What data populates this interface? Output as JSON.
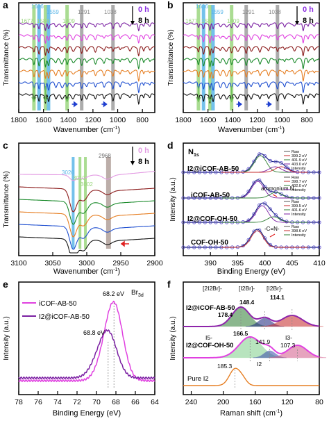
{
  "chart_data": [
    {
      "panel": "a",
      "type": "line",
      "xlabel": "Wavenumber (cm",
      "xlabel_sup": "-1",
      "xlabel_tail": ")",
      "ylabel": "Transmittance (%)",
      "xlim": [
        1800,
        700
      ],
      "x_reversed": true,
      "xticks": [
        "1800",
        "1600",
        "1400",
        "1200",
        "1000",
        "800"
      ],
      "xtick_values": [
        1800,
        1600,
        1400,
        1200,
        1000,
        800
      ],
      "timeline_start": "0 h",
      "timeline_end": "8 h",
      "band_markers": [
        {
          "label": "1677",
          "x": 1677,
          "color": "#9bd67f"
        },
        {
          "label": "1636",
          "x": 1636,
          "color": "#5bb6e8"
        },
        {
          "label": "1584",
          "x": 1584,
          "color": "#9bd67f"
        },
        {
          "label": "1559",
          "x": 1559,
          "color": "#5bb6e8"
        },
        {
          "label": "1409",
          "x": 1409,
          "color": "#9bd67f"
        },
        {
          "label": "1291",
          "x": 1291,
          "color": "#9e9e9e"
        },
        {
          "label": "1038",
          "x": 1038,
          "color": "#9e9e9e"
        }
      ],
      "series_colors": [
        "#7a1fa2",
        "#e040e0",
        "#8b1a1a",
        "#1a8a2a",
        "#e67e22",
        "#1f4fd0",
        "#111111"
      ]
    },
    {
      "panel": "b",
      "type": "line",
      "xlabel": "Wavenumber (cm",
      "xlabel_sup": "-1",
      "xlabel_tail": ")",
      "ylabel": "Transmittance (%)",
      "xlim": [
        1800,
        700
      ],
      "x_reversed": true,
      "xticks": [
        "1800",
        "1600",
        "1400",
        "1200",
        "1000",
        "800"
      ],
      "xtick_values": [
        1800,
        1600,
        1400,
        1200,
        1000,
        800
      ],
      "timeline_start": "0 h",
      "timeline_end": "8 h",
      "band_markers": [
        {
          "label": "1677",
          "x": 1677,
          "color": "#9bd67f"
        },
        {
          "label": "1636",
          "x": 1636,
          "color": "#5bb6e8"
        },
        {
          "label": "1584",
          "x": 1584,
          "color": "#9bd67f"
        },
        {
          "label": "1559",
          "x": 1559,
          "color": "#5bb6e8"
        },
        {
          "label": "1409",
          "x": 1409,
          "color": "#9bd67f"
        },
        {
          "label": "1291",
          "x": 1291,
          "color": "#9e9e9e"
        },
        {
          "label": "1038",
          "x": 1038,
          "color": "#9e9e9e"
        }
      ],
      "series_colors": [
        "#7a1fa2",
        "#e040e0",
        "#8b1a1a",
        "#1a8a2a",
        "#e67e22",
        "#1f4fd0",
        "#111111"
      ]
    },
    {
      "panel": "c",
      "type": "line",
      "xlabel": "Wavenumber (cm",
      "xlabel_sup": "-1",
      "xlabel_tail": ")",
      "ylabel": "Transmittance (%)",
      "xlim": [
        3100,
        2900
      ],
      "x_reversed": true,
      "xticks": [
        "3100",
        "3050",
        "3000",
        "2950",
        "2900"
      ],
      "xtick_values": [
        3100,
        3050,
        3000,
        2950,
        2900
      ],
      "timeline_start": "0 h",
      "timeline_end": "8 h",
      "band_markers": [
        {
          "label": "3020",
          "x": 3020,
          "color": "#5bb6e8"
        },
        {
          "label": "3010",
          "x": 3010,
          "color": "#9bd67f"
        },
        {
          "label": "3002",
          "x": 3002,
          "color": "#9bd67f"
        },
        {
          "label": "2968",
          "x": 2968,
          "color": "#b0a09a"
        }
      ]
    },
    {
      "panel": "d",
      "type": "line",
      "title": "N",
      "title_sub": "1s",
      "xlabel": "Binding Energy (eV)",
      "ylabel": "Intensity (a.u.)",
      "xlim": [
        385,
        410
      ],
      "xticks": [
        "390",
        "395",
        "400",
        "405",
        "410"
      ],
      "xtick_values": [
        390,
        395,
        400,
        405,
        410
      ],
      "samples": [
        {
          "name": "I2@iCOF-AB-50",
          "legend": [
            "Raw",
            "399.2 eV",
            "401.9 eV",
            "403.0 eV",
            "Intensity"
          ],
          "peaks": [
            399.2,
            401.9,
            403.0
          ]
        },
        {
          "name": "iCOF-AB-50",
          "annotation": "ammonium N",
          "legend": [
            "Raw",
            "398.7 eV",
            "402.0 eV",
            "Intensity"
          ],
          "peaks": [
            398.7,
            402.0
          ]
        },
        {
          "name": "I2@COF-OH-50",
          "legend": [
            "Raw",
            "399.5 eV",
            "401.6 eV",
            "Intensity"
          ],
          "peaks": [
            399.5,
            401.6
          ]
        },
        {
          "name": "COF-OH-50",
          "annotation": "-C=N-",
          "legend": [
            "Raw",
            "398.6 eV",
            "Intensity"
          ],
          "peaks": [
            398.6
          ]
        }
      ]
    },
    {
      "panel": "e",
      "type": "line",
      "title": "Br",
      "title_sub": "3d",
      "xlabel": "Binding Energy (eV)",
      "ylabel": "Intensity (a.u.)",
      "xlim": [
        78,
        64
      ],
      "x_reversed": true,
      "xticks": [
        "78",
        "76",
        "74",
        "72",
        "70",
        "68",
        "66",
        "64"
      ],
      "xtick_values": [
        78,
        76,
        74,
        72,
        70,
        68,
        66,
        64
      ],
      "series": [
        {
          "name": "iCOF-AB-50",
          "color": "#e040e0",
          "peak": 68.2,
          "peak_label": "68.2 eV"
        },
        {
          "name": "I2@iCOF-AB-50",
          "color": "#7a1fa2",
          "peak": 68.8,
          "peak_label": "68.8 eV"
        }
      ]
    },
    {
      "panel": "f",
      "type": "line",
      "xlabel": "Raman shift (cm",
      "xlabel_sup": "-1",
      "xlabel_tail": ")",
      "ylabel": "Intensity (a.u.)",
      "xlim": [
        250,
        80
      ],
      "x_reversed": true,
      "xticks": [
        "240",
        "200",
        "160",
        "120",
        "80"
      ],
      "xtick_values": [
        240,
        200,
        160,
        120,
        80
      ],
      "species_labels": [
        "[2I2Br]-",
        "[I2Br]-",
        "[I2Br]-",
        "I5-",
        "I3-",
        "I2"
      ],
      "samples": [
        {
          "name": "I2@iCOF-AB-50",
          "peaks": [
            178.4,
            148.4,
            114.1
          ]
        },
        {
          "name": "I2@COF-OH-50",
          "peaks": [
            166.5,
            141.9,
            107.3
          ]
        },
        {
          "name": "Pure I2",
          "peaks": [
            185.3
          ]
        }
      ],
      "peak_labels": [
        "178.4",
        "148.4",
        "114.1",
        "166.5",
        "141.9",
        "107.3",
        "185.3"
      ]
    }
  ],
  "panel_labels": [
    "a",
    "b",
    "c",
    "d",
    "e",
    "f"
  ]
}
